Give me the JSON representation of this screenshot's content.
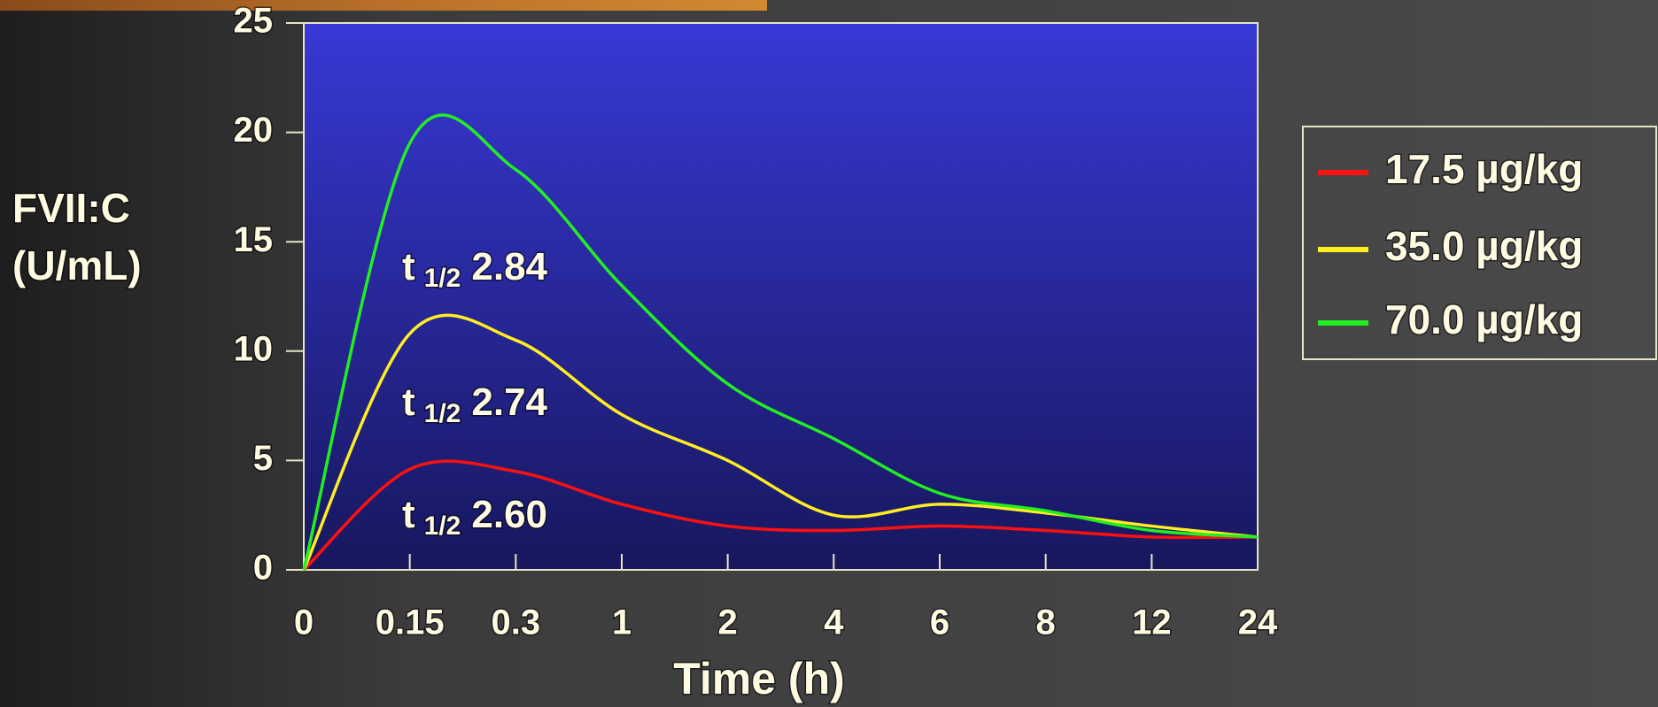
{
  "chart_data": {
    "type": "line",
    "y_label_lines": [
      "FVII:C",
      "(U/mL)"
    ],
    "x_label": "Time (h)",
    "categories": [
      "0",
      "0.15",
      "0.3",
      "1",
      "2",
      "4",
      "6",
      "8",
      "12",
      "24"
    ],
    "series": [
      {
        "name": "17.5 µg/kg",
        "color": "#ff1010",
        "values": [
          0,
          4.6,
          4.5,
          3.0,
          2.0,
          1.8,
          2.0,
          1.8,
          1.5,
          1.5
        ]
      },
      {
        "name": "35.0 µg/kg",
        "color": "#ffee22",
        "values": [
          0,
          10.8,
          10.5,
          7.1,
          5.0,
          2.5,
          3.0,
          2.6,
          2.0,
          1.5
        ]
      },
      {
        "name": "70.0 µg/kg",
        "color": "#22ee22",
        "values": [
          0,
          19.5,
          18.3,
          13.0,
          8.5,
          6.0,
          3.5,
          2.7,
          1.8,
          1.5
        ]
      }
    ],
    "annotations": [
      {
        "text": "t",
        "subscript": "1/2",
        "value": "2.84"
      },
      {
        "text": "t",
        "subscript": "1/2",
        "value": "2.74"
      },
      {
        "text": "t",
        "subscript": "1/2",
        "value": "2.60"
      }
    ],
    "ylim": [
      0,
      25
    ],
    "yticks": [
      0,
      5,
      10,
      15,
      20,
      25
    ],
    "grid": false,
    "legend": "right"
  }
}
